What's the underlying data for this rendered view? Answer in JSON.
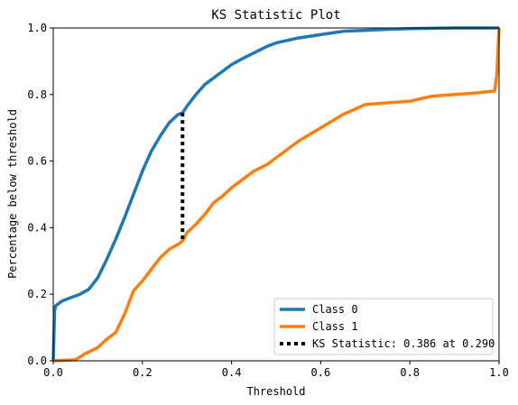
{
  "chart_data": {
    "type": "line",
    "title": "KS Statistic Plot",
    "xlabel": "Threshold",
    "ylabel": "Percentage below threshold",
    "xlim": [
      0,
      1
    ],
    "ylim": [
      0,
      1
    ],
    "x_ticks": [
      "0.0",
      "0.2",
      "0.4",
      "0.6",
      "0.8",
      "1.0"
    ],
    "y_ticks": [
      "0.0",
      "0.2",
      "0.4",
      "0.6",
      "0.8",
      "1.0"
    ],
    "grid": false,
    "legend_position": "bottom-right",
    "series": [
      {
        "name": "Class 0",
        "color": "#1f77b4",
        "x": [
          0.0,
          0.003,
          0.005,
          0.02,
          0.04,
          0.06,
          0.08,
          0.1,
          0.12,
          0.14,
          0.16,
          0.18,
          0.2,
          0.22,
          0.24,
          0.26,
          0.28,
          0.29,
          0.3,
          0.32,
          0.34,
          0.36,
          0.38,
          0.4,
          0.42,
          0.45,
          0.48,
          0.5,
          0.55,
          0.6,
          0.65,
          0.7,
          0.75,
          0.8,
          0.85,
          0.9,
          0.95,
          1.0
        ],
        "y": [
          0.0,
          0.15,
          0.165,
          0.18,
          0.19,
          0.2,
          0.215,
          0.25,
          0.305,
          0.365,
          0.43,
          0.5,
          0.57,
          0.63,
          0.675,
          0.715,
          0.74,
          0.745,
          0.765,
          0.8,
          0.83,
          0.85,
          0.87,
          0.89,
          0.905,
          0.925,
          0.945,
          0.955,
          0.97,
          0.98,
          0.99,
          0.993,
          0.996,
          0.998,
          0.999,
          1.0,
          1.0,
          1.0
        ]
      },
      {
        "name": "Class 1",
        "color": "#ff7f0e",
        "x": [
          0.0,
          0.05,
          0.07,
          0.1,
          0.12,
          0.14,
          0.16,
          0.18,
          0.2,
          0.22,
          0.24,
          0.26,
          0.28,
          0.29,
          0.3,
          0.32,
          0.34,
          0.36,
          0.38,
          0.4,
          0.42,
          0.45,
          0.48,
          0.5,
          0.55,
          0.6,
          0.65,
          0.7,
          0.75,
          0.8,
          0.85,
          0.9,
          0.95,
          0.985,
          0.99,
          0.995,
          1.0
        ],
        "y": [
          0.0,
          0.003,
          0.02,
          0.04,
          0.065,
          0.085,
          0.14,
          0.21,
          0.24,
          0.275,
          0.31,
          0.335,
          0.35,
          0.36,
          0.385,
          0.41,
          0.44,
          0.475,
          0.495,
          0.52,
          0.54,
          0.57,
          0.59,
          0.61,
          0.66,
          0.7,
          0.74,
          0.77,
          0.775,
          0.78,
          0.795,
          0.8,
          0.805,
          0.81,
          0.81,
          0.86,
          1.0
        ]
      }
    ],
    "ks_statistic": {
      "label": "KS Statistic: 0.386 at 0.290",
      "threshold": 0.29,
      "y_low": 0.359,
      "y_high": 0.745
    }
  }
}
